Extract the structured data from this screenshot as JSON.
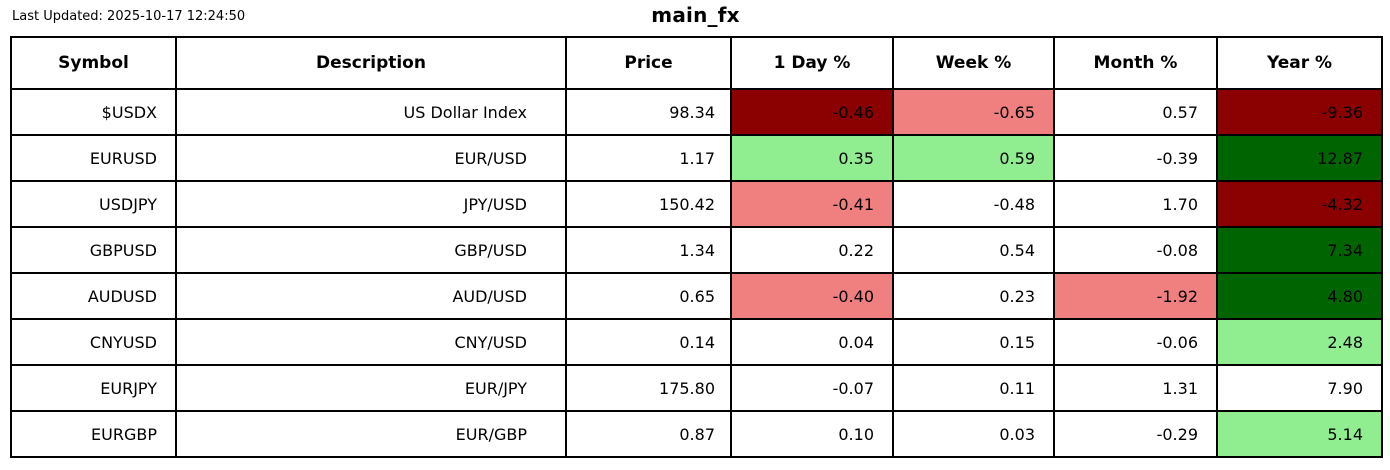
{
  "page": {
    "last_updated": "Last Updated: 2025-10-17 12:24:50",
    "title": "main_fx"
  },
  "chart_data": {
    "type": "table",
    "title": "main_fx",
    "last_updated": "Last Updated: 2025-10-17 12:24:50",
    "columns": [
      "Symbol",
      "Description",
      "Price",
      "1 Day %",
      "Week %",
      "Month %",
      "Year %"
    ],
    "cell_colors": {
      "dark_red": "#8b0000",
      "light_red": "#f08080",
      "light_green": "#90ee90",
      "dark_green": "#006400",
      "none": "#ffffff"
    },
    "rows": [
      {
        "symbol": "$USDX",
        "description": "US Dollar Index",
        "price": "98.34",
        "changes": [
          {
            "value": "-0.46",
            "color": "dark_red"
          },
          {
            "value": "-0.65",
            "color": "light_red"
          },
          {
            "value": "0.57",
            "color": "none"
          },
          {
            "value": "-9.36",
            "color": "dark_red"
          }
        ]
      },
      {
        "symbol": "EURUSD",
        "description": "EUR/USD",
        "price": "1.17",
        "changes": [
          {
            "value": "0.35",
            "color": "light_green"
          },
          {
            "value": "0.59",
            "color": "light_green"
          },
          {
            "value": "-0.39",
            "color": "none"
          },
          {
            "value": "12.87",
            "color": "dark_green"
          }
        ]
      },
      {
        "symbol": "USDJPY",
        "description": "JPY/USD",
        "price": "150.42",
        "changes": [
          {
            "value": "-0.41",
            "color": "light_red"
          },
          {
            "value": "-0.48",
            "color": "none"
          },
          {
            "value": "1.70",
            "color": "none"
          },
          {
            "value": "-4.32",
            "color": "dark_red"
          }
        ]
      },
      {
        "symbol": "GBPUSD",
        "description": "GBP/USD",
        "price": "1.34",
        "changes": [
          {
            "value": "0.22",
            "color": "none"
          },
          {
            "value": "0.54",
            "color": "none"
          },
          {
            "value": "-0.08",
            "color": "none"
          },
          {
            "value": "7.34",
            "color": "dark_green"
          }
        ]
      },
      {
        "symbol": "AUDUSD",
        "description": "AUD/USD",
        "price": "0.65",
        "changes": [
          {
            "value": "-0.40",
            "color": "light_red"
          },
          {
            "value": "0.23",
            "color": "none"
          },
          {
            "value": "-1.92",
            "color": "light_red"
          },
          {
            "value": "4.80",
            "color": "dark_green"
          }
        ]
      },
      {
        "symbol": "CNYUSD",
        "description": "CNY/USD",
        "price": "0.14",
        "changes": [
          {
            "value": "0.04",
            "color": "none"
          },
          {
            "value": "0.15",
            "color": "none"
          },
          {
            "value": "-0.06",
            "color": "none"
          },
          {
            "value": "2.48",
            "color": "light_green"
          }
        ]
      },
      {
        "symbol": "EURJPY",
        "description": "EUR/JPY",
        "price": "175.80",
        "changes": [
          {
            "value": "-0.07",
            "color": "none"
          },
          {
            "value": "0.11",
            "color": "none"
          },
          {
            "value": "1.31",
            "color": "none"
          },
          {
            "value": "7.90",
            "color": "none"
          }
        ]
      },
      {
        "symbol": "EURGBP",
        "description": "EUR/GBP",
        "price": "0.87",
        "changes": [
          {
            "value": "0.10",
            "color": "none"
          },
          {
            "value": "0.03",
            "color": "none"
          },
          {
            "value": "-0.29",
            "color": "none"
          },
          {
            "value": "5.14",
            "color": "light_green"
          }
        ]
      }
    ]
  }
}
